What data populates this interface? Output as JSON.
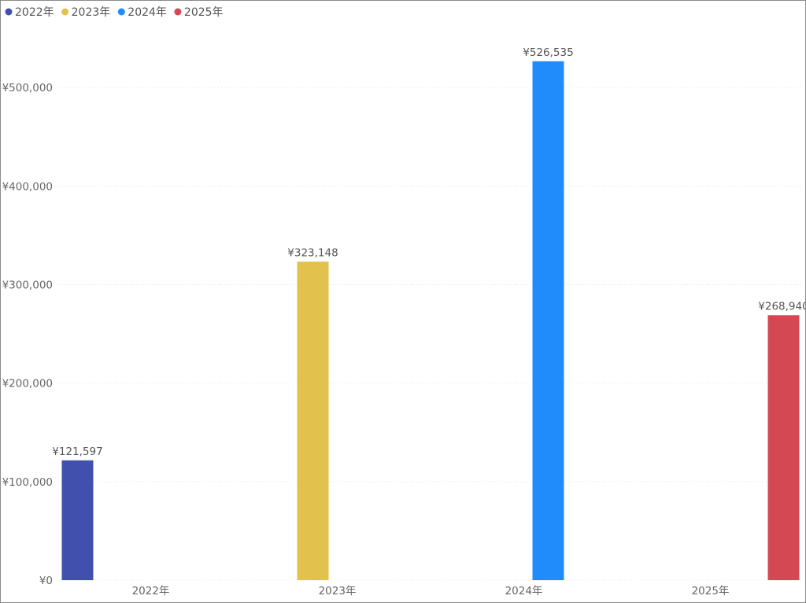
{
  "chart_data": {
    "type": "bar",
    "title": "",
    "xlabel": "",
    "ylabel": "",
    "categories": [
      "2022年",
      "2023年",
      "2024年",
      "2025年"
    ],
    "series": [
      {
        "name": "2022年",
        "color": "#4150ad",
        "values": [
          121597,
          null,
          null,
          null
        ]
      },
      {
        "name": "2023年",
        "color": "#e2c24d",
        "values": [
          null,
          323148,
          null,
          null
        ]
      },
      {
        "name": "2024年",
        "color": "#208cfb",
        "values": [
          null,
          null,
          526535,
          null
        ]
      },
      {
        "name": "2025年",
        "color": "#d34852",
        "values": [
          null,
          null,
          null,
          268940
        ]
      }
    ],
    "data_labels": [
      "¥121,597",
      "¥323,148",
      "¥526,535",
      "¥268,940"
    ],
    "yticks": [
      0,
      100000,
      200000,
      300000,
      400000,
      500000
    ],
    "ytick_labels": [
      "¥0",
      "¥100,000",
      "¥200,000",
      "¥300,000",
      "¥400,000",
      "¥500,000"
    ],
    "ylim": [
      0,
      540000
    ],
    "grid": true,
    "legend_position": "top-left"
  }
}
